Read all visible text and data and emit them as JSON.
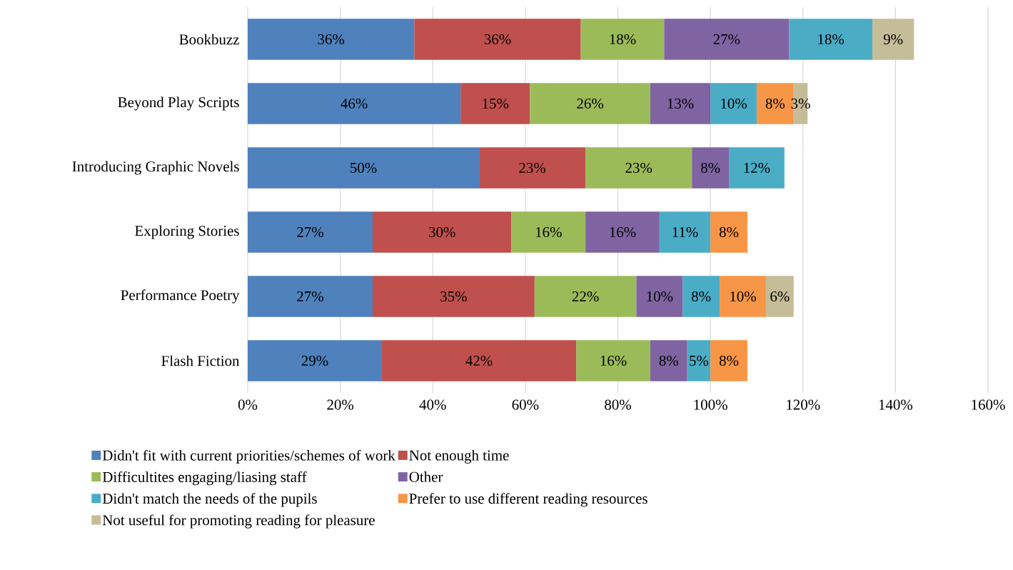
{
  "chart_data": {
    "type": "bar",
    "orientation": "horizontal",
    "stacked": true,
    "categories": [
      "Bookbuzz",
      "Beyond Play Scripts",
      "Introducing Graphic Novels",
      "Exploring Stories",
      "Performance Poetry",
      "Flash Fiction"
    ],
    "series": [
      {
        "name": "Didn't fit with current priorities/schemes of work",
        "color": "#4f81bd",
        "values": [
          36,
          46,
          50,
          27,
          27,
          29
        ],
        "value_labels": [
          "36%",
          "46%",
          "50%",
          "27%",
          "27%",
          "29%"
        ]
      },
      {
        "name": "Not enough time",
        "color": "#c0504d",
        "values": [
          36,
          15,
          23,
          30,
          35,
          42
        ],
        "value_labels": [
          "36%",
          "15%",
          "23%",
          "30%",
          "35%",
          "42%"
        ]
      },
      {
        "name": "Difficultites engaging/liasing staff",
        "color": "#9bbb59",
        "values": [
          18,
          26,
          23,
          16,
          22,
          16
        ],
        "value_labels": [
          "18%",
          "26%",
          "23%",
          "16%",
          "22%",
          "16%"
        ]
      },
      {
        "name": "Other",
        "color": "#8064a2",
        "values": [
          27,
          13,
          8,
          16,
          10,
          8
        ],
        "value_labels": [
          "27%",
          "13%",
          "8%",
          "16%",
          "10%",
          "8%"
        ]
      },
      {
        "name": "Didn't match the needs of the pupils",
        "color": "#4bacc6",
        "values": [
          18,
          10,
          12,
          11,
          8,
          5
        ],
        "value_labels": [
          "18%",
          "10%",
          "12%",
          "11%",
          "8%",
          "5%"
        ]
      },
      {
        "name": "Prefer to use different reading resources",
        "color": "#f79646",
        "values": [
          null,
          8,
          null,
          8,
          10,
          8
        ],
        "value_labels": [
          null,
          "8%",
          null,
          "8%",
          "10%",
          "8%"
        ]
      },
      {
        "name": "Not useful for promoting reading for pleasure",
        "color": "#c4bd97",
        "values": [
          9,
          3,
          null,
          null,
          6,
          null
        ],
        "value_labels": [
          "9%",
          "3%",
          null,
          null,
          "6%",
          null
        ]
      }
    ],
    "xlim": [
      0,
      160
    ],
    "xticks": [
      {
        "value": 0,
        "label": "0%"
      },
      {
        "value": 20,
        "label": "20%"
      },
      {
        "value": 40,
        "label": "40%"
      },
      {
        "value": 60,
        "label": "60%"
      },
      {
        "value": 80,
        "label": "80%"
      },
      {
        "value": 100,
        "label": "100%"
      },
      {
        "value": 120,
        "label": "120%"
      },
      {
        "value": 140,
        "label": "140%"
      },
      {
        "value": 160,
        "label": "160%"
      }
    ],
    "grid": "x",
    "legend": "bottom"
  }
}
